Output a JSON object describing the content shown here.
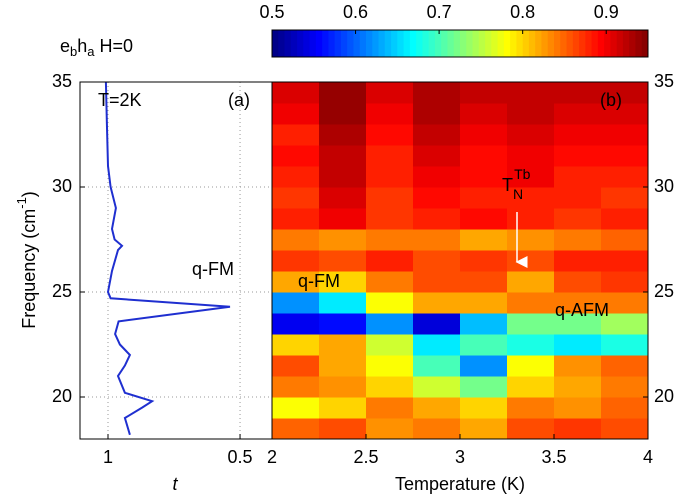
{
  "chart_data": [
    {
      "type": "line",
      "title": [
        "e",
        "b",
        "h",
        "a",
        " H=0"
      ],
      "ylabel": [
        "Frequency (cm",
        "-1",
        ")"
      ],
      "xlabel": "t",
      "xlim": [
        1.106,
        0.379
      ],
      "xticks": [
        1,
        0.5
      ],
      "ylim": [
        18,
        35
      ],
      "yticks": [
        20,
        25,
        30,
        35
      ],
      "grid": true,
      "annotations": [
        "T=2K",
        "(a)",
        "q-FM"
      ],
      "series": [
        {
          "color": "#1f2fd0",
          "x": [
            18.2,
            19,
            19.5,
            19.8,
            20.2,
            21,
            21.5,
            22,
            22.5,
            23,
            23.6,
            24.3,
            24.7,
            25,
            26,
            27,
            27.2,
            27.5,
            28,
            29,
            30,
            31,
            33,
            35
          ],
          "values": [
            0.917,
            0.936,
            0.87,
            0.833,
            0.936,
            0.962,
            0.936,
            0.917,
            0.955,
            0.973,
            0.96,
            0.538,
            0.99,
            1.0,
            0.985,
            0.962,
            0.947,
            0.975,
            0.985,
            0.97,
            0.99,
            1.0,
            1.004,
            1.008
          ]
        }
      ]
    },
    {
      "type": "heatmap",
      "xlabel": "Temperature (K)",
      "xlim": [
        2,
        4
      ],
      "xticks": [
        2,
        2.5,
        3,
        3.5,
        4
      ],
      "ylim": [
        18,
        35
      ],
      "yticks": [
        20,
        25,
        30,
        35
      ],
      "clim": [
        0.5,
        0.95
      ],
      "cticks": [
        0.5,
        0.6,
        0.7,
        0.8,
        0.9
      ],
      "annotations": [
        "(b)",
        "q-FM",
        "q-AFM"
      ],
      "transition_label": [
        "T",
        "N",
        "Tb"
      ],
      "x": [
        2.125,
        2.375,
        2.625,
        2.875,
        3.125,
        3.375,
        3.625,
        3.875
      ],
      "y": [
        18.5,
        19.5,
        20.5,
        21.5,
        22.5,
        23.5,
        24.5,
        25.5,
        26.5,
        27.5,
        28.5,
        29.5,
        30.5,
        31.5,
        32.5,
        33.5,
        34.5
      ],
      "z": [
        [
          0.85,
          0.86,
          0.83,
          0.84,
          0.82,
          0.86,
          0.87,
          0.86
        ],
        [
          0.78,
          0.8,
          0.84,
          0.82,
          0.8,
          0.84,
          0.83,
          0.85
        ],
        [
          0.84,
          0.83,
          0.8,
          0.76,
          0.72,
          0.8,
          0.82,
          0.84
        ],
        [
          0.86,
          0.82,
          0.78,
          0.7,
          0.62,
          0.78,
          0.83,
          0.85
        ],
        [
          0.8,
          0.82,
          0.76,
          0.66,
          0.7,
          0.68,
          0.66,
          0.68
        ],
        [
          0.55,
          0.56,
          0.62,
          0.54,
          0.64,
          0.72,
          0.72,
          0.74
        ],
        [
          0.62,
          0.66,
          0.78,
          0.82,
          0.82,
          0.84,
          0.84,
          0.84
        ],
        [
          0.82,
          0.8,
          0.84,
          0.86,
          0.86,
          0.82,
          0.86,
          0.87
        ],
        [
          0.87,
          0.86,
          0.88,
          0.86,
          0.87,
          0.86,
          0.88,
          0.88
        ],
        [
          0.84,
          0.83,
          0.84,
          0.84,
          0.82,
          0.83,
          0.84,
          0.85
        ],
        [
          0.88,
          0.9,
          0.87,
          0.88,
          0.89,
          0.88,
          0.87,
          0.88
        ],
        [
          0.87,
          0.91,
          0.87,
          0.89,
          0.88,
          0.88,
          0.88,
          0.87
        ],
        [
          0.88,
          0.92,
          0.88,
          0.9,
          0.89,
          0.9,
          0.88,
          0.88
        ],
        [
          0.89,
          0.92,
          0.88,
          0.91,
          0.89,
          0.9,
          0.89,
          0.89
        ],
        [
          0.88,
          0.93,
          0.89,
          0.92,
          0.9,
          0.91,
          0.9,
          0.9
        ],
        [
          0.9,
          0.94,
          0.9,
          0.93,
          0.91,
          0.92,
          0.91,
          0.91
        ],
        [
          0.91,
          0.94,
          0.91,
          0.93,
          0.92,
          0.92,
          0.92,
          0.92
        ]
      ]
    }
  ]
}
